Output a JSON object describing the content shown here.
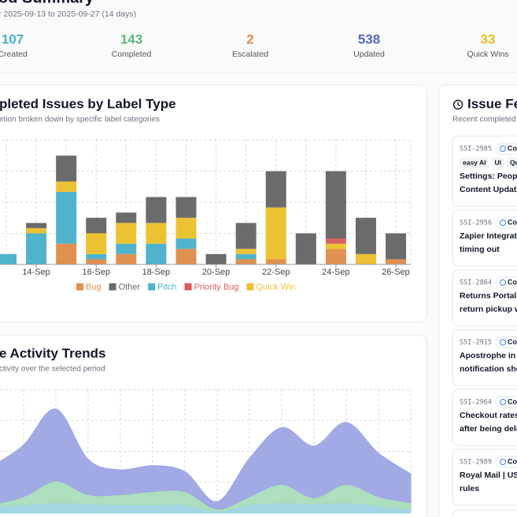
{
  "header": {
    "title": "od Summary",
    "subtitle": "r 2025-09-13 to 2025-09-27 (14 days)"
  },
  "stats": [
    {
      "value": 107,
      "label": "Created",
      "color": "#4aaecb"
    },
    {
      "value": 143,
      "label": "Completed",
      "color": "#5cb87a"
    },
    {
      "value": 2,
      "label": "Escalated",
      "color": "#e0894a"
    },
    {
      "value": 538,
      "label": "Updated",
      "color": "#5567bd"
    },
    {
      "value": 33,
      "label": "Quick Wins",
      "color": "#e6b820"
    }
  ],
  "chart_data": [
    {
      "type": "bar",
      "stacked": true,
      "title": "pleted Issues by Label Type",
      "subtitle": "etion broken down by specific label categories",
      "categories": [
        null,
        "14-Sep",
        null,
        "16-Sep",
        null,
        "18-Sep",
        null,
        "20-Sep",
        null,
        "22-Sep",
        null,
        "24-Sep",
        null,
        "26-Sep"
      ],
      "series": [
        {
          "name": "Bug",
          "color": "#e0904f",
          "values": [
            0,
            0,
            4,
            1,
            2,
            0,
            3,
            0,
            1,
            1,
            0,
            3,
            0,
            1
          ]
        },
        {
          "name": "Other",
          "color": "#6b6b6b",
          "values": [
            0,
            1,
            5,
            3,
            2,
            5,
            4,
            2,
            5,
            7,
            6,
            13,
            7,
            5
          ]
        },
        {
          "name": "Pitch",
          "color": "#4fb3cc",
          "values": [
            2,
            6,
            10,
            1,
            2,
            4,
            2,
            0,
            1,
            0,
            0,
            0,
            0,
            0
          ]
        },
        {
          "name": "Priority Bug",
          "color": "#d95f5f",
          "values": [
            0,
            0,
            0,
            0,
            0,
            0,
            0,
            0,
            0,
            0,
            0,
            1,
            0,
            0
          ]
        },
        {
          "name": "Quick Win",
          "color": "#ecc232",
          "values": [
            0,
            1,
            2,
            4,
            4,
            4,
            4,
            0,
            1,
            10,
            0,
            1,
            2,
            0
          ]
        }
      ],
      "ylim": [
        0,
        24
      ],
      "yticks": [
        0,
        6,
        12,
        18,
        24
      ],
      "grid": true
    },
    {
      "type": "area",
      "stacked": true,
      "title": "e Activity Trends",
      "subtitle": "ctivity over the selected period",
      "series": [
        {
          "color": "#9fd3e2",
          "values": [
            6,
            8,
            10,
            9,
            8,
            8,
            8,
            2,
            8,
            10,
            9,
            10,
            7,
            4
          ]
        },
        {
          "color": "#a9dcb9",
          "values": [
            2,
            8,
            21,
            9,
            10,
            13,
            13,
            2,
            8,
            18,
            6,
            18,
            9,
            6
          ]
        },
        {
          "color": "#9da5e4",
          "values": [
            37,
            50,
            70,
            34,
            24,
            25,
            19,
            7,
            37,
            55,
            50,
            60,
            42,
            28
          ]
        }
      ],
      "ylim": [
        0,
        120
      ],
      "yticks": [
        0,
        30,
        60,
        90,
        120
      ],
      "grid": true
    }
  ],
  "feed": {
    "title": "Issue Fe",
    "subtitle": "Recent completed",
    "items": [
      {
        "id": "SSI-2985",
        "status": "Co",
        "tags": [
          "easy AI",
          "UI",
          "Qui"
        ],
        "lines": [
          "Settings: People",
          "Content Updates"
        ]
      },
      {
        "id": "SSI-2956",
        "status": "Co",
        "tags": [],
        "lines": [
          "Zapier Integratio",
          "timing out"
        ]
      },
      {
        "id": "SSI-2864",
        "status": "Co",
        "tags": [],
        "lines": [
          "Returns Portal |",
          "return pickup wi"
        ]
      },
      {
        "id": "SSI-2915",
        "status": "Co",
        "tags": [],
        "lines": [
          "Apostrophe in su",
          "notification show"
        ]
      },
      {
        "id": "SSI-2964",
        "status": "Co",
        "tags": [],
        "lines": [
          "Checkout rates |",
          "after being delet"
        ]
      },
      {
        "id": "SSI-2989",
        "status": "Co",
        "tags": [],
        "lines": [
          "Royal Mail | US s",
          "rules"
        ]
      }
    ]
  }
}
